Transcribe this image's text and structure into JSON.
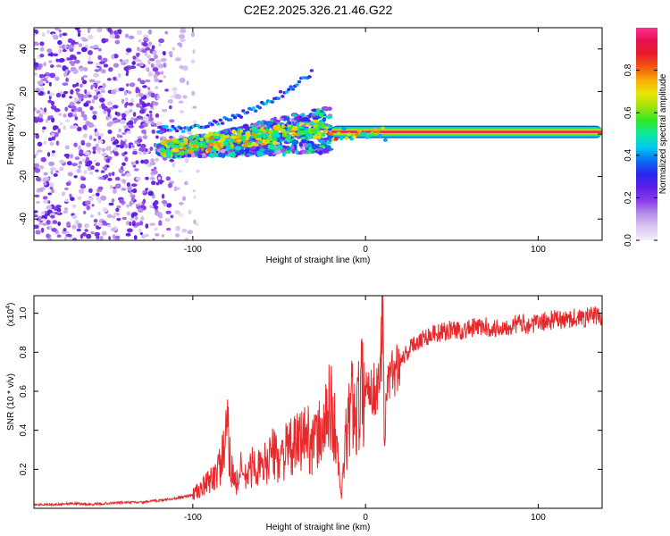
{
  "title": "C2E2.2025.326.21.46.G22",
  "chart_data": [
    {
      "type": "heatmap",
      "name": "spectrogram",
      "xlabel": "Height of straight line (km)",
      "ylabel": "Frequency (Hz)",
      "xlim": [
        -192,
        137
      ],
      "ylim": [
        -50,
        50
      ],
      "xticks": [
        -100,
        0,
        100
      ],
      "yticks": [
        -40,
        -20,
        0,
        20,
        40
      ],
      "colorbar": {
        "label": "Normalized spectral amplitude",
        "range": [
          0,
          1
        ],
        "ticks": [
          0.0,
          0.2,
          0.4,
          0.6,
          0.8
        ],
        "colors": [
          "#f4f0f9",
          "#d9c8f0",
          "#b890ea",
          "#8a3ce8",
          "#5a1ee6",
          "#2a28f0",
          "#0a6ff2",
          "#00c8ee",
          "#10e8a0",
          "#2fe826",
          "#9be30d",
          "#e8e808",
          "#f7b008",
          "#f45a10",
          "#e91d2b",
          "#e8104f",
          "#ff3090"
        ]
      },
      "features": [
        {
          "name": "noise region",
          "x_range": [
            -192,
            -105
          ],
          "freq_range": [
            -50,
            50
          ],
          "amplitude": "0.05-0.25"
        },
        {
          "name": "weak tone",
          "x_range": [
            -120,
            -30
          ],
          "freq": "-10 to 30",
          "amplitude": "0.2-0.45"
        },
        {
          "name": "spread tone",
          "x_range": [
            -120,
            -20
          ],
          "freq": "-12 to 10",
          "amplitude": "0.25-0.8"
        },
        {
          "name": "steady tone",
          "x_range": [
            -20,
            137
          ],
          "freq": 1,
          "amplitude": "0.85-1.0"
        }
      ]
    },
    {
      "type": "line",
      "name": "snr",
      "xlabel": "Height of straight line (km)",
      "ylabel": "SNR (10 * v/v)",
      "y_multiplier": "(x10",
      "y_multiplier_exp": "4",
      "xlim": [
        -192,
        137
      ],
      "ylim": [
        0.0,
        1.09
      ],
      "xticks": [
        -100,
        0,
        100
      ],
      "yticks": [
        0.2,
        0.4,
        0.6,
        0.8,
        1.0
      ],
      "color": "#e8282a",
      "series": [
        {
          "name": "SNR",
          "x": [
            -192,
            -180,
            -170,
            -160,
            -150,
            -140,
            -130,
            -120,
            -110,
            -105,
            -100,
            -95,
            -90,
            -85,
            -82,
            -80,
            -78,
            -75,
            -72,
            -70,
            -65,
            -60,
            -55,
            -50,
            -45,
            -40,
            -35,
            -30,
            -25,
            -22,
            -20,
            -18,
            -16,
            -14,
            -12,
            -10,
            -8,
            -5,
            -3,
            0,
            3,
            6,
            8,
            9,
            10,
            11,
            12,
            14,
            16,
            18,
            20,
            22,
            25,
            28,
            30,
            35,
            40,
            45,
            50,
            55,
            60,
            65,
            70,
            75,
            80,
            85,
            90,
            95,
            100,
            105,
            110,
            115,
            120,
            125,
            130,
            137
          ],
          "y": [
            0.02,
            0.02,
            0.025,
            0.02,
            0.025,
            0.03,
            0.03,
            0.04,
            0.05,
            0.06,
            0.07,
            0.1,
            0.14,
            0.2,
            0.28,
            0.4,
            0.22,
            0.12,
            0.2,
            0.15,
            0.22,
            0.2,
            0.28,
            0.26,
            0.3,
            0.32,
            0.38,
            0.33,
            0.4,
            0.46,
            0.55,
            0.42,
            0.25,
            0.05,
            0.3,
            0.42,
            0.55,
            0.5,
            0.58,
            0.62,
            0.63,
            0.6,
            0.66,
            0.95,
            1.09,
            0.3,
            0.62,
            0.65,
            0.7,
            0.73,
            0.76,
            0.78,
            0.81,
            0.84,
            0.86,
            0.88,
            0.9,
            0.9,
            0.92,
            0.91,
            0.92,
            0.93,
            0.93,
            0.92,
            0.93,
            0.94,
            0.95,
            0.94,
            0.95,
            0.96,
            0.97,
            0.96,
            0.98,
            0.97,
            0.99,
            0.98
          ]
        }
      ]
    }
  ]
}
